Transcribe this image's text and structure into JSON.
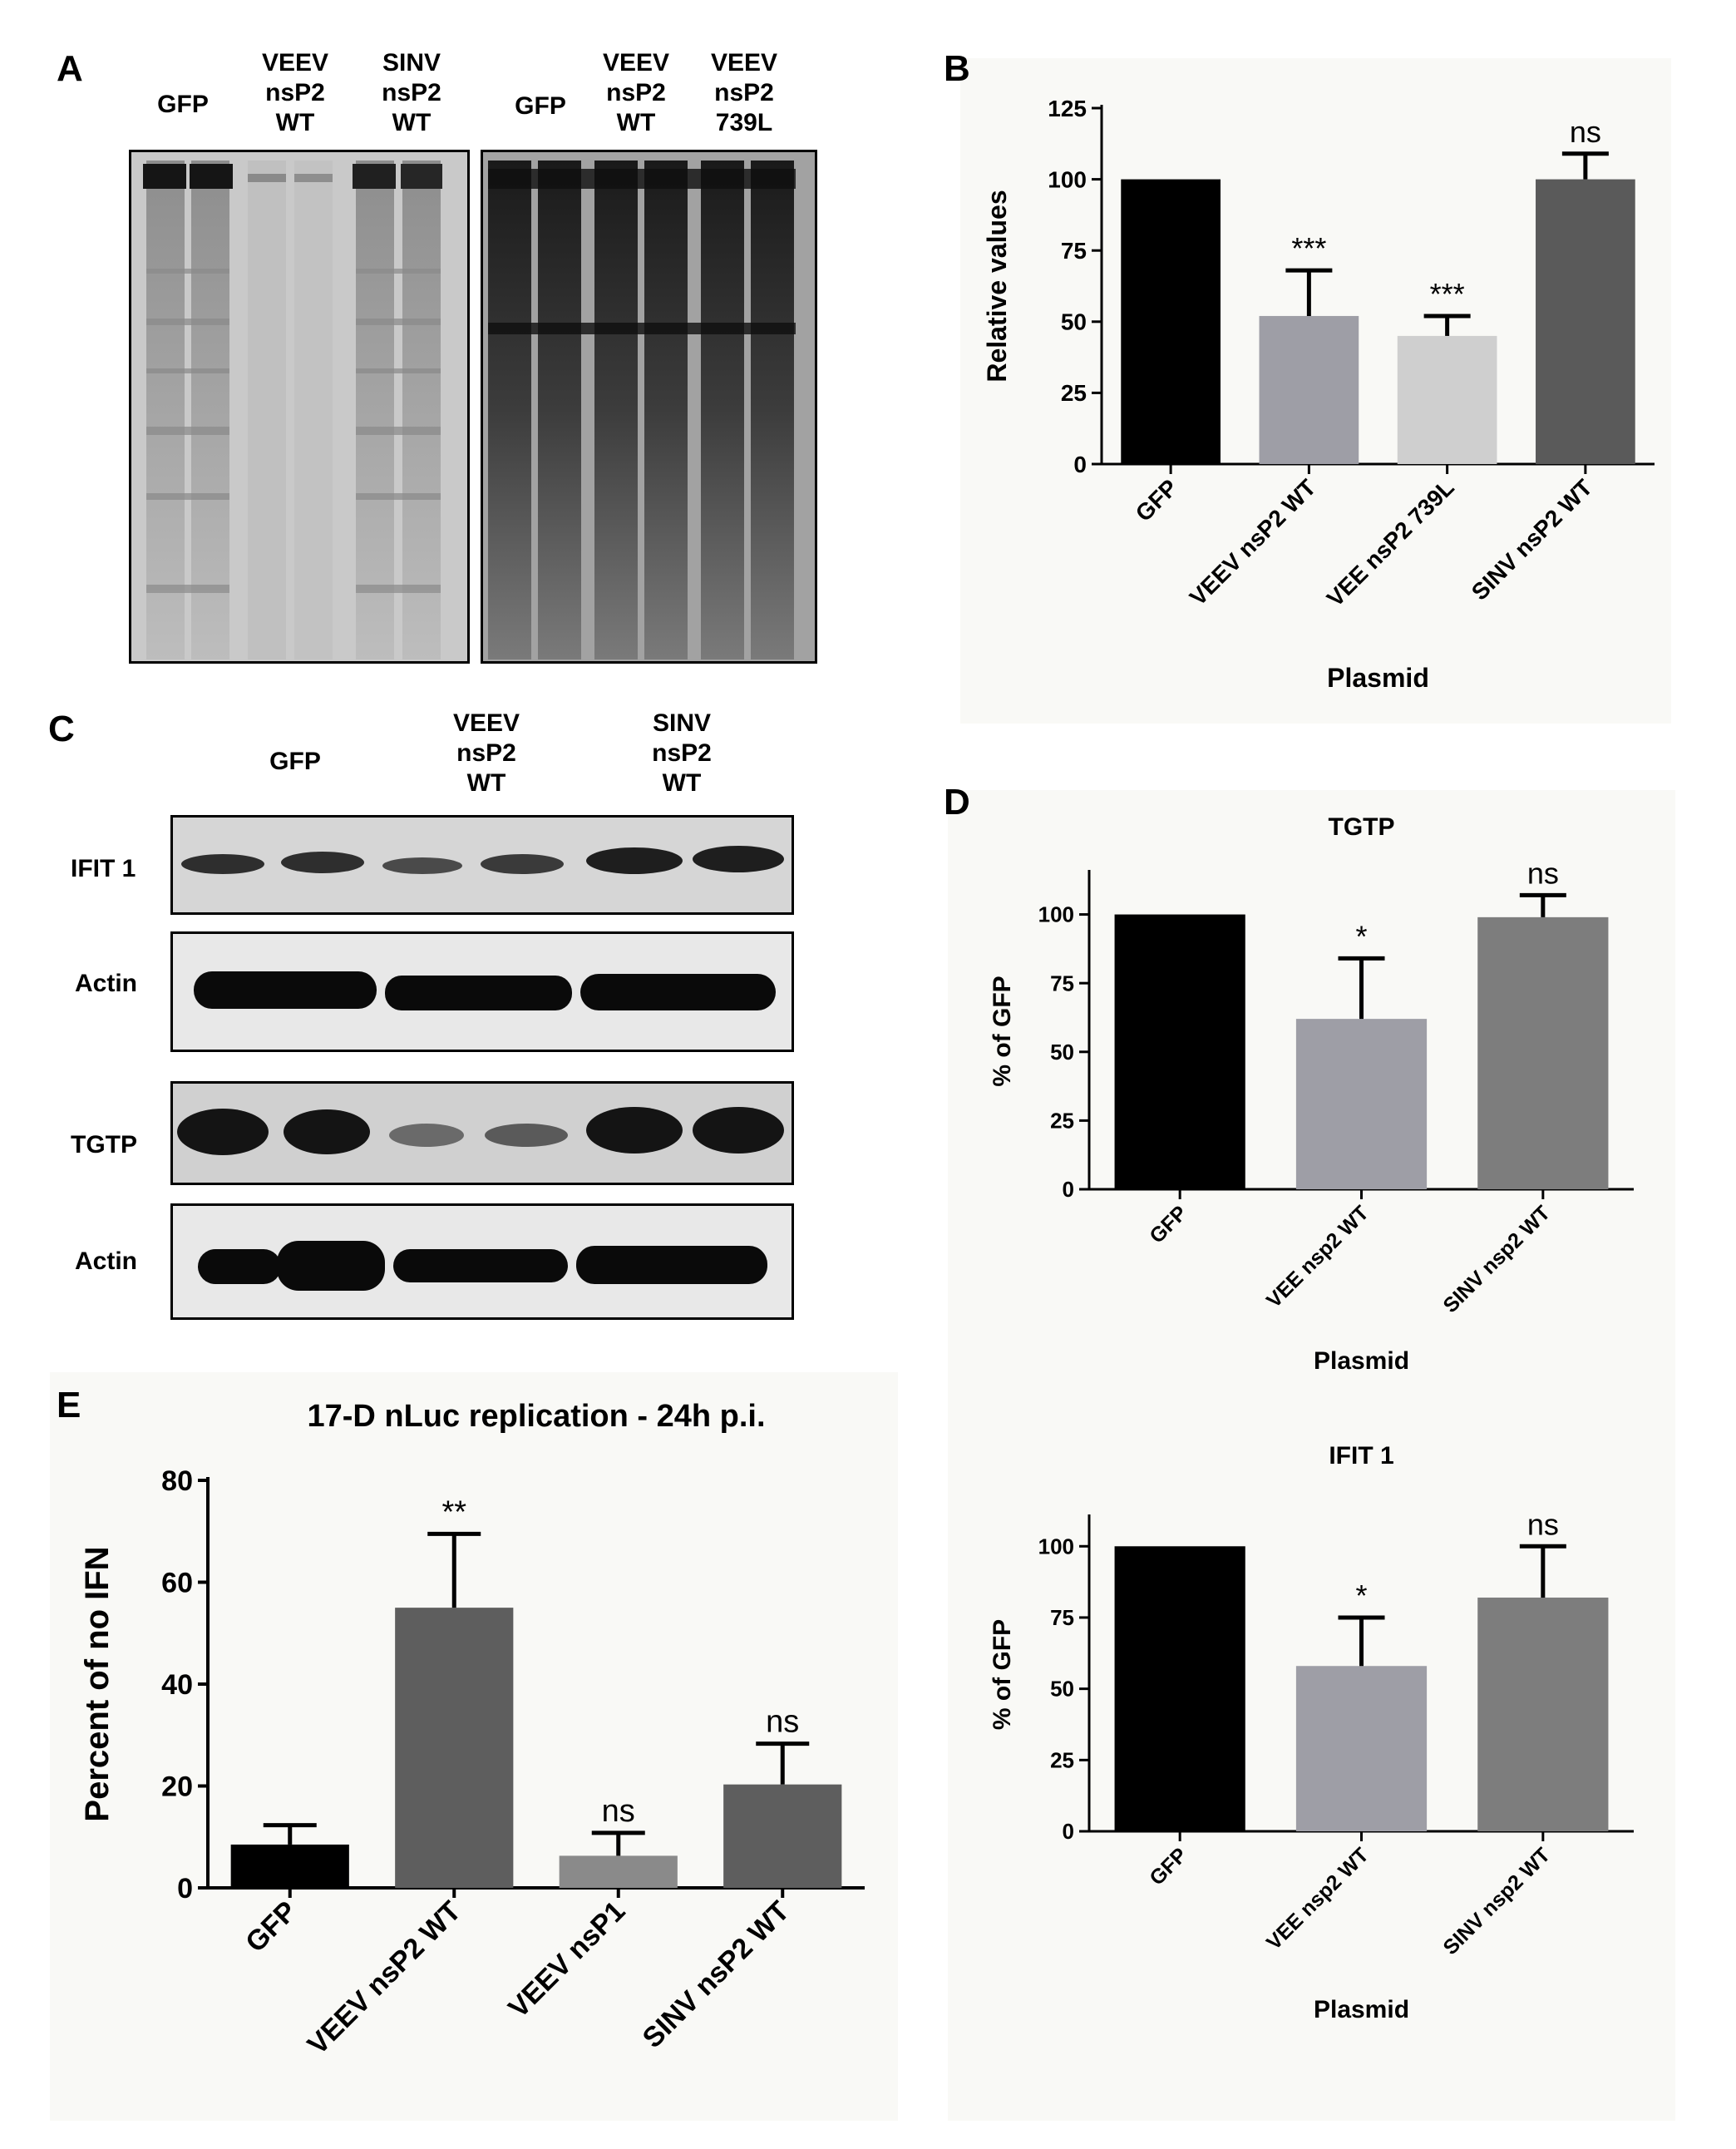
{
  "panels": {
    "A": {
      "label": "A",
      "left_gel_lanes": [
        "GFP",
        "VEEV\nnsP2\nWT",
        "SINV\nnsP2\nWT"
      ],
      "right_gel_lanes": [
        "GFP",
        "VEEV\nnsP2\nWT",
        "VEEV\nnsP2\n739L"
      ]
    },
    "B": {
      "label": "B"
    },
    "C": {
      "label": "C",
      "lanes": [
        "GFP",
        "VEEV\nnsP2\nWT",
        "SINV\nnsP2\nWT"
      ],
      "rows": [
        "IFIT 1",
        "Actin",
        "TGTP",
        "Actin"
      ]
    },
    "D": {
      "label": "D"
    },
    "E": {
      "label": "E"
    }
  },
  "colors": {
    "black": "#000000",
    "light_grey": "#9e9ea6",
    "lighter_grey": "#cfcfcf",
    "dark_grey": "#5a5a5a",
    "mid_grey": "#7d7d7d",
    "panel_bg": "#f9f9f6"
  },
  "chart_data": [
    {
      "id": "B",
      "type": "bar",
      "title": "",
      "xlabel": "Plasmid",
      "ylabel": "Relative values",
      "categories": [
        "GFP",
        "VEEV nsP2 WT",
        "VEE nsP2 739L",
        "SINV nsP2 WT"
      ],
      "values": [
        100,
        52,
        45,
        100
      ],
      "errors": [
        0,
        16,
        7,
        9
      ],
      "annotations": [
        "",
        "***",
        "***",
        "ns"
      ],
      "bar_colors": [
        "#000000",
        "#9e9ea6",
        "#cfcfcf",
        "#5a5a5a"
      ],
      "ylim": [
        0,
        125
      ],
      "yticks": [
        0,
        25,
        50,
        75,
        100,
        125
      ]
    },
    {
      "id": "D1",
      "type": "bar",
      "title": "TGTP",
      "xlabel": "Plasmid",
      "ylabel": "% of GFP",
      "categories": [
        "GFP",
        "VEE nsp2 WT",
        "SINV nsp2 WT"
      ],
      "values": [
        100,
        62,
        99
      ],
      "errors": [
        0,
        22,
        8
      ],
      "annotations": [
        "",
        "*",
        "ns"
      ],
      "bar_colors": [
        "#000000",
        "#9e9ea6",
        "#7d7d7d"
      ],
      "ylim": [
        0,
        115
      ],
      "yticks": [
        0,
        25,
        50,
        75,
        100
      ]
    },
    {
      "id": "D2",
      "type": "bar",
      "title": "IFIT 1",
      "xlabel": "Plasmid",
      "ylabel": "% of GFP",
      "categories": [
        "GFP",
        "VEE nsp2 WT",
        "SINV nsp2 WT"
      ],
      "values": [
        100,
        58,
        82
      ],
      "errors": [
        0,
        17,
        18
      ],
      "annotations": [
        "",
        "*",
        "ns"
      ],
      "bar_colors": [
        "#000000",
        "#9e9ea6",
        "#7d7d7d"
      ],
      "ylim": [
        0,
        110
      ],
      "yticks": [
        0,
        25,
        50,
        75,
        100
      ]
    },
    {
      "id": "E",
      "type": "bar",
      "title": "17-D nLuc replication - 24h p.i.",
      "xlabel": "",
      "ylabel": "Percent of no IFN",
      "categories": [
        "GFP",
        "VEEV nsP2 WT",
        "VEEV nsP1",
        "SINV nsP2 WT"
      ],
      "values": [
        8.5,
        55,
        6.3,
        20.3
      ],
      "errors": [
        3.8,
        14.5,
        4.5,
        8
      ],
      "annotations": [
        "",
        "**",
        "ns",
        "ns"
      ],
      "bar_colors": [
        "#000000",
        "#5e5e5e",
        "#8a8a8a",
        "#5e5e5e"
      ],
      "ylim": [
        0,
        80
      ],
      "yticks": [
        0,
        20,
        40,
        60,
        80
      ]
    }
  ]
}
